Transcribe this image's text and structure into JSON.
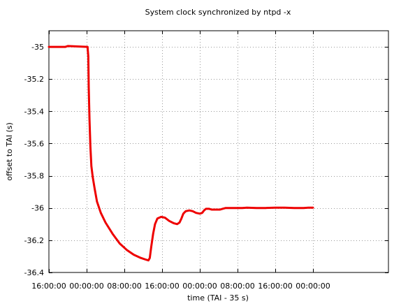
{
  "chart_data": {
    "type": "line",
    "title": "System clock synchronized by ntpd -x",
    "xlabel": "time (TAI - 35 s)",
    "ylabel": "offset to TAI (s)",
    "x_unit": "hours",
    "xlim": [
      0,
      72
    ],
    "ylim": [
      -36.4,
      -34.9
    ],
    "x_ticks": [
      {
        "x": 0,
        "label": "16:00:00"
      },
      {
        "x": 8,
        "label": "00:00:00"
      },
      {
        "x": 16,
        "label": "08:00:00"
      },
      {
        "x": 24,
        "label": "16:00:00"
      },
      {
        "x": 32,
        "label": "00:00:00"
      },
      {
        "x": 40,
        "label": "08:00:00"
      },
      {
        "x": 48,
        "label": "16:00:00"
      },
      {
        "x": 56,
        "label": "00:00:00"
      }
    ],
    "y_ticks": [
      {
        "y": -35.0,
        "label": "-35"
      },
      {
        "y": -35.2,
        "label": "-35.2"
      },
      {
        "y": -35.4,
        "label": "-35.4"
      },
      {
        "y": -35.6,
        "label": "-35.6"
      },
      {
        "y": -35.8,
        "label": "-35.8"
      },
      {
        "y": -36.0,
        "label": "-36"
      },
      {
        "y": -36.2,
        "label": "-36.2"
      },
      {
        "y": -36.4,
        "label": "-36.4"
      }
    ],
    "grid": true,
    "series": [
      {
        "color": "#ee0000",
        "points": [
          [
            0,
            -35.0
          ],
          [
            3.5,
            -35.0
          ],
          [
            4.0,
            -34.995
          ],
          [
            8.2,
            -35.0
          ],
          [
            8.35,
            -35.06
          ],
          [
            8.45,
            -35.25
          ],
          [
            8.6,
            -35.45
          ],
          [
            8.8,
            -35.62
          ],
          [
            9.0,
            -35.74
          ],
          [
            9.3,
            -35.81
          ],
          [
            9.7,
            -35.88
          ],
          [
            10.2,
            -35.96
          ],
          [
            11.0,
            -36.03
          ],
          [
            12.0,
            -36.09
          ],
          [
            13.5,
            -36.16
          ],
          [
            15.0,
            -36.22
          ],
          [
            16.5,
            -36.26
          ],
          [
            18.0,
            -36.29
          ],
          [
            19.5,
            -36.31
          ],
          [
            20.5,
            -36.32
          ],
          [
            21.1,
            -36.325
          ],
          [
            21.4,
            -36.31
          ],
          [
            21.7,
            -36.24
          ],
          [
            22.1,
            -36.16
          ],
          [
            22.5,
            -36.1
          ],
          [
            23.0,
            -36.065
          ],
          [
            23.8,
            -36.055
          ],
          [
            24.6,
            -36.06
          ],
          [
            25.5,
            -36.08
          ],
          [
            26.5,
            -36.095
          ],
          [
            27.2,
            -36.1
          ],
          [
            27.7,
            -36.09
          ],
          [
            28.1,
            -36.065
          ],
          [
            28.5,
            -36.035
          ],
          [
            29.0,
            -36.02
          ],
          [
            29.8,
            -36.015
          ],
          [
            30.5,
            -36.02
          ],
          [
            31.2,
            -36.03
          ],
          [
            32.0,
            -36.035
          ],
          [
            32.5,
            -36.03
          ],
          [
            32.9,
            -36.015
          ],
          [
            33.3,
            -36.005
          ],
          [
            34.0,
            -36.005
          ],
          [
            34.5,
            -36.01
          ],
          [
            35.5,
            -36.01
          ],
          [
            36.3,
            -36.01
          ],
          [
            36.8,
            -36.005
          ],
          [
            37.5,
            -36.0
          ],
          [
            38.5,
            -36.0
          ],
          [
            40.0,
            -36.0
          ],
          [
            41.0,
            -36.0
          ],
          [
            42.0,
            -35.998
          ],
          [
            44.0,
            -36.0
          ],
          [
            46.0,
            -36.0
          ],
          [
            48.0,
            -35.998
          ],
          [
            50.0,
            -35.998
          ],
          [
            52.0,
            -36.0
          ],
          [
            54.0,
            -36.0
          ],
          [
            55.0,
            -35.998
          ],
          [
            56.0,
            -35.998
          ]
        ]
      }
    ]
  }
}
